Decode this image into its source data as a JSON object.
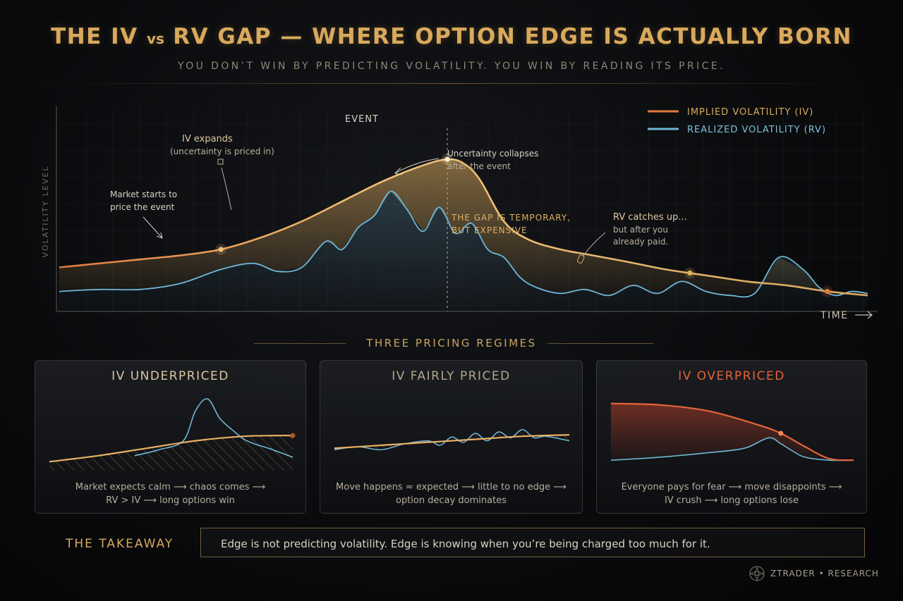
{
  "header": {
    "title_part1": "THE IV",
    "title_vs": "vs",
    "title_part2": "RV GAP — WHERE OPTION EDGE IS ACTUALLY BORN",
    "subtitle": "YOU DON’T WIN BY PREDICTING VOLATILITY. YOU WIN BY READING ITS PRICE."
  },
  "chart_data": [
    {
      "type": "line",
      "xlabel": "TIME",
      "ylabel": "VOLATILITY LEVEL",
      "xlim": [
        0,
        100
      ],
      "ylim": [
        0,
        100
      ],
      "grid": true,
      "legend_position": "top-right",
      "series": [
        {
          "name": "IMPLIED VOLATILITY (IV)",
          "color": "#e07a3c",
          "x": [
            0,
            5,
            10,
            15,
            20,
            25,
            30,
            35,
            40,
            45,
            48,
            50,
            52,
            55,
            58,
            62,
            66,
            70,
            75,
            80,
            85,
            90,
            95,
            100
          ],
          "y": [
            22,
            24,
            26,
            28,
            31,
            37,
            45,
            55,
            65,
            73,
            76,
            74,
            66,
            45,
            36,
            31,
            28,
            25,
            21,
            18,
            15,
            13,
            10,
            8
          ]
        },
        {
          "name": "REALIZED VOLATILITY (RV)",
          "color": "#6fb6d6",
          "x": [
            0,
            5,
            10,
            15,
            20,
            24,
            27,
            30,
            33,
            35,
            37,
            39,
            41,
            43,
            45,
            47,
            49,
            51,
            53,
            55,
            57,
            59,
            62,
            65,
            68,
            71,
            74,
            77,
            80,
            83,
            86,
            89,
            92,
            94,
            96,
            98,
            100
          ],
          "y": [
            10,
            11,
            11,
            14,
            21,
            24,
            20,
            22,
            35,
            31,
            42,
            48,
            60,
            51,
            40,
            52,
            39,
            44,
            31,
            27,
            17,
            12,
            9,
            11,
            8,
            13,
            9,
            15,
            10,
            8,
            9,
            27,
            21,
            12,
            8,
            10,
            9
          ]
        }
      ],
      "annotations": [
        {
          "text": "EVENT"
        },
        {
          "text": "IV expands",
          "sub": "(uncertainty is priced in)"
        },
        {
          "text": "Market starts to",
          "sub": "price the event"
        },
        {
          "text": "Uncertainty collapses",
          "sub": "after the event"
        },
        {
          "text": "THE GAP IS TEMPORARY,",
          "sub": "BUT EXPENSIVE"
        },
        {
          "text": "RV catches up...",
          "sub": "but after you",
          "sub2": "already paid."
        }
      ]
    },
    {
      "type": "line",
      "title": "IV UNDERPRICED",
      "xlim": [
        0,
        100
      ],
      "ylim": [
        0,
        100
      ],
      "series": [
        {
          "name": "IV",
          "x": [
            0,
            20,
            40,
            60,
            80,
            95,
            100
          ],
          "y": [
            12,
            20,
            30,
            40,
            46,
            47,
            47
          ]
        },
        {
          "name": "RV",
          "x": [
            35,
            45,
            55,
            60,
            65,
            70,
            75,
            80,
            85,
            90,
            100
          ],
          "y": [
            20,
            28,
            40,
            80,
            96,
            70,
            55,
            42,
            35,
            30,
            18
          ]
        }
      ]
    },
    {
      "type": "line",
      "title": "IV FAIRLY PRICED",
      "xlim": [
        0,
        100
      ],
      "ylim": [
        0,
        100
      ],
      "series": [
        {
          "name": "IV",
          "x": [
            0,
            20,
            40,
            60,
            80,
            100
          ],
          "y": [
            30,
            34,
            38,
            42,
            46,
            48
          ]
        },
        {
          "name": "RV",
          "x": [
            0,
            10,
            20,
            30,
            40,
            45,
            50,
            55,
            60,
            65,
            70,
            75,
            80,
            85,
            90,
            100
          ],
          "y": [
            28,
            32,
            28,
            36,
            40,
            34,
            45,
            38,
            50,
            40,
            52,
            44,
            55,
            44,
            46,
            40
          ]
        }
      ]
    },
    {
      "type": "line",
      "title": "IV OVERPRICED",
      "xlim": [
        0,
        100
      ],
      "ylim": [
        0,
        100
      ],
      "series": [
        {
          "name": "IV",
          "x": [
            0,
            20,
            40,
            60,
            70,
            80,
            90,
            100
          ],
          "y": [
            90,
            88,
            80,
            62,
            50,
            32,
            16,
            14
          ]
        },
        {
          "name": "RV",
          "x": [
            0,
            20,
            40,
            55,
            65,
            70,
            75,
            80,
            90,
            100
          ],
          "y": [
            14,
            18,
            24,
            30,
            44,
            36,
            26,
            18,
            14,
            14
          ]
        }
      ]
    }
  ],
  "regimes": {
    "header": "THREE PRICING REGIMES",
    "panels": [
      {
        "title": "IV UNDERPRICED",
        "desc1": "Market expects calm ⟶ chaos comes ⟶",
        "desc2": "RV > IV ⟶ long options win",
        "title_color": "#d9c7a0"
      },
      {
        "title": "IV FAIRLY PRICED",
        "desc1": "Move happens ≈ expected ⟶ little to no edge ⟶",
        "desc2": "option decay dominates",
        "title_color": "#b2a58c"
      },
      {
        "title": "IV OVERPRICED",
        "desc1": "Everyone pays for fear ⟶ move disappoints ⟶",
        "desc2": "IV crush ⟶ long options lose",
        "title_color": "#e0643a"
      }
    ]
  },
  "takeaway": {
    "label": "THE TAKEAWAY",
    "text": "Edge is not predicting volatility. Edge is knowing when you’re being charged too much for it."
  },
  "brand": {
    "text": "ZTRADER • RESEARCH"
  },
  "colors": {
    "gold": "#d9a95c",
    "iv": "#e07a3c",
    "rv": "#6fb6d6",
    "over": "#e0643a"
  }
}
